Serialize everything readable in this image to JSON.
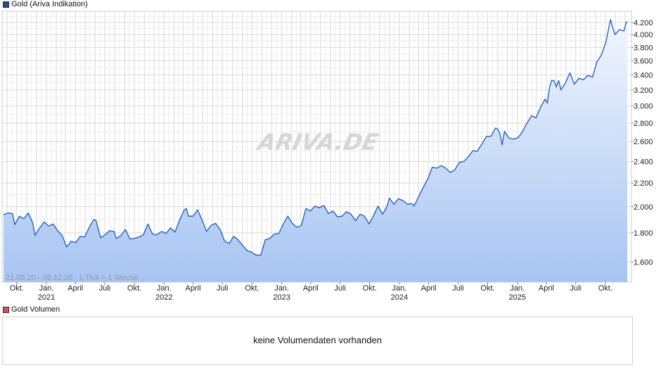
{
  "colors": {
    "line": "#1a5cb8",
    "fill_top": "#f2f6fd",
    "fill_bottom": "#a7c4f2",
    "grid": "#d9d9d9",
    "gold_swatch": "#1f4e9c",
    "volume_swatch": "#d9534f",
    "watermark": "#d6d6d6"
  },
  "legend": {
    "main": "Gold (Ariva Indikation)",
    "volume": "Gold Volumen"
  },
  "watermark": "ARIVA.DE",
  "info": {
    "range": "21.08.20 - 08.12.25",
    "tick": "1 Tick = 1 Woche"
  },
  "volume": {
    "message": "keine Volumendaten vorhanden"
  },
  "chart_data": {
    "type": "area",
    "title": "Gold (Ariva Indikation)",
    "y_scale": "log",
    "ylim": [
      1440,
      4300
    ],
    "y_ticks": [
      1600,
      1800,
      2000,
      2200,
      2400,
      2600,
      2800,
      3000,
      3200,
      3400,
      3600,
      3800,
      4000,
      4200
    ],
    "y_tick_labels": [
      "1.600",
      "1.800",
      "2.000",
      "2.200",
      "2.400",
      "2.600",
      "2.800",
      "3.000",
      "3.200",
      "3.400",
      "3.600",
      "3.800",
      "4.000",
      "4.200"
    ],
    "x_range": [
      "2020-08-21",
      "2025-12-08"
    ],
    "x_ticks": [
      {
        "date": "2020-10-01",
        "label": "Okt."
      },
      {
        "date": "2021-01-01",
        "label": "Jan.",
        "year": "2021"
      },
      {
        "date": "2021-04-01",
        "label": "April"
      },
      {
        "date": "2021-07-01",
        "label": "Juli"
      },
      {
        "date": "2021-10-01",
        "label": "Okt."
      },
      {
        "date": "2022-01-01",
        "label": "Jan.",
        "year": "2022"
      },
      {
        "date": "2022-04-01",
        "label": "April"
      },
      {
        "date": "2022-07-01",
        "label": "Juli"
      },
      {
        "date": "2022-10-01",
        "label": "Okt."
      },
      {
        "date": "2023-01-01",
        "label": "Jan.",
        "year": "2023"
      },
      {
        "date": "2023-04-01",
        "label": "April"
      },
      {
        "date": "2023-07-01",
        "label": "Juli"
      },
      {
        "date": "2023-10-01",
        "label": "Okt."
      },
      {
        "date": "2024-01-01",
        "label": "Jan.",
        "year": "2024"
      },
      {
        "date": "2024-04-01",
        "label": "April"
      },
      {
        "date": "2024-07-01",
        "label": "Juli"
      },
      {
        "date": "2024-10-01",
        "label": "Okt."
      },
      {
        "date": "2025-01-01",
        "label": "Jan.",
        "year": "2025"
      },
      {
        "date": "2025-04-01",
        "label": "April"
      },
      {
        "date": "2025-07-01",
        "label": "Juli"
      },
      {
        "date": "2025-10-01",
        "label": "Okt."
      }
    ],
    "grid": true,
    "legend": "top-left",
    "series": [
      {
        "name": "Gold (Ariva Indikation)",
        "points": [
          [
            "2020-08-21",
            1935
          ],
          [
            "2020-09-04",
            1950
          ],
          [
            "2020-09-18",
            1945
          ],
          [
            "2020-09-25",
            1860
          ],
          [
            "2020-10-09",
            1925
          ],
          [
            "2020-10-23",
            1905
          ],
          [
            "2020-11-06",
            1950
          ],
          [
            "2020-11-20",
            1870
          ],
          [
            "2020-11-27",
            1780
          ],
          [
            "2020-12-11",
            1835
          ],
          [
            "2020-12-25",
            1880
          ],
          [
            "2021-01-08",
            1850
          ],
          [
            "2021-01-22",
            1865
          ],
          [
            "2021-02-05",
            1815
          ],
          [
            "2021-02-19",
            1780
          ],
          [
            "2021-03-05",
            1700
          ],
          [
            "2021-03-19",
            1740
          ],
          [
            "2021-04-02",
            1730
          ],
          [
            "2021-04-16",
            1775
          ],
          [
            "2021-04-30",
            1770
          ],
          [
            "2021-05-14",
            1840
          ],
          [
            "2021-05-28",
            1900
          ],
          [
            "2021-06-04",
            1890
          ],
          [
            "2021-06-18",
            1765
          ],
          [
            "2021-07-02",
            1785
          ],
          [
            "2021-07-16",
            1815
          ],
          [
            "2021-07-30",
            1810
          ],
          [
            "2021-08-06",
            1760
          ],
          [
            "2021-08-20",
            1780
          ],
          [
            "2021-09-03",
            1825
          ],
          [
            "2021-09-17",
            1755
          ],
          [
            "2021-10-01",
            1760
          ],
          [
            "2021-10-15",
            1770
          ],
          [
            "2021-10-29",
            1785
          ],
          [
            "2021-11-12",
            1865
          ],
          [
            "2021-11-26",
            1790
          ],
          [
            "2021-12-10",
            1785
          ],
          [
            "2021-12-24",
            1810
          ],
          [
            "2022-01-07",
            1795
          ],
          [
            "2022-01-21",
            1835
          ],
          [
            "2022-02-04",
            1805
          ],
          [
            "2022-02-18",
            1895
          ],
          [
            "2022-03-04",
            1970
          ],
          [
            "2022-03-11",
            1985
          ],
          [
            "2022-03-18",
            1925
          ],
          [
            "2022-04-01",
            1925
          ],
          [
            "2022-04-15",
            1975
          ],
          [
            "2022-04-29",
            1895
          ],
          [
            "2022-05-13",
            1810
          ],
          [
            "2022-05-27",
            1855
          ],
          [
            "2022-06-10",
            1870
          ],
          [
            "2022-06-24",
            1825
          ],
          [
            "2022-07-08",
            1740
          ],
          [
            "2022-07-22",
            1725
          ],
          [
            "2022-08-05",
            1775
          ],
          [
            "2022-08-19",
            1750
          ],
          [
            "2022-09-02",
            1710
          ],
          [
            "2022-09-16",
            1675
          ],
          [
            "2022-09-30",
            1665
          ],
          [
            "2022-10-14",
            1645
          ],
          [
            "2022-10-28",
            1645
          ],
          [
            "2022-11-11",
            1750
          ],
          [
            "2022-11-25",
            1760
          ],
          [
            "2022-12-09",
            1790
          ],
          [
            "2022-12-23",
            1795
          ],
          [
            "2023-01-06",
            1865
          ],
          [
            "2023-01-20",
            1925
          ],
          [
            "2023-02-03",
            1870
          ],
          [
            "2023-02-17",
            1840
          ],
          [
            "2023-03-03",
            1855
          ],
          [
            "2023-03-17",
            1985
          ],
          [
            "2023-03-31",
            1965
          ],
          [
            "2023-04-14",
            2005
          ],
          [
            "2023-04-28",
            1990
          ],
          [
            "2023-05-12",
            2010
          ],
          [
            "2023-05-26",
            1945
          ],
          [
            "2023-06-09",
            1965
          ],
          [
            "2023-06-23",
            1920
          ],
          [
            "2023-07-07",
            1925
          ],
          [
            "2023-07-21",
            1960
          ],
          [
            "2023-08-04",
            1940
          ],
          [
            "2023-08-18",
            1890
          ],
          [
            "2023-09-01",
            1940
          ],
          [
            "2023-09-15",
            1925
          ],
          [
            "2023-09-29",
            1865
          ],
          [
            "2023-10-13",
            1930
          ],
          [
            "2023-10-27",
            2005
          ],
          [
            "2023-11-10",
            1940
          ],
          [
            "2023-11-24",
            2005
          ],
          [
            "2023-12-01",
            2070
          ],
          [
            "2023-12-15",
            2020
          ],
          [
            "2023-12-29",
            2065
          ],
          [
            "2024-01-12",
            2050
          ],
          [
            "2024-01-26",
            2020
          ],
          [
            "2024-02-09",
            2025
          ],
          [
            "2024-02-16",
            2005
          ],
          [
            "2024-03-01",
            2085
          ],
          [
            "2024-03-15",
            2160
          ],
          [
            "2024-03-29",
            2235
          ],
          [
            "2024-04-12",
            2345
          ],
          [
            "2024-04-26",
            2335
          ],
          [
            "2024-05-10",
            2360
          ],
          [
            "2024-05-24",
            2335
          ],
          [
            "2024-06-07",
            2295
          ],
          [
            "2024-06-21",
            2320
          ],
          [
            "2024-07-05",
            2390
          ],
          [
            "2024-07-19",
            2400
          ],
          [
            "2024-08-02",
            2445
          ],
          [
            "2024-08-16",
            2505
          ],
          [
            "2024-08-30",
            2500
          ],
          [
            "2024-09-13",
            2575
          ],
          [
            "2024-09-27",
            2655
          ],
          [
            "2024-10-11",
            2655
          ],
          [
            "2024-10-25",
            2745
          ],
          [
            "2024-11-01",
            2735
          ],
          [
            "2024-11-08",
            2685
          ],
          [
            "2024-11-15",
            2565
          ],
          [
            "2024-11-22",
            2710
          ],
          [
            "2024-12-06",
            2635
          ],
          [
            "2024-12-20",
            2625
          ],
          [
            "2025-01-03",
            2640
          ],
          [
            "2025-01-17",
            2705
          ],
          [
            "2025-01-31",
            2800
          ],
          [
            "2025-02-14",
            2885
          ],
          [
            "2025-02-28",
            2860
          ],
          [
            "2025-03-14",
            2985
          ],
          [
            "2025-03-28",
            3085
          ],
          [
            "2025-04-04",
            3035
          ],
          [
            "2025-04-11",
            3235
          ],
          [
            "2025-04-18",
            3330
          ],
          [
            "2025-04-25",
            3320
          ],
          [
            "2025-05-02",
            3240
          ],
          [
            "2025-05-09",
            3325
          ],
          [
            "2025-05-16",
            3200
          ],
          [
            "2025-05-30",
            3290
          ],
          [
            "2025-06-13",
            3430
          ],
          [
            "2025-06-27",
            3275
          ],
          [
            "2025-07-11",
            3355
          ],
          [
            "2025-07-25",
            3335
          ],
          [
            "2025-08-08",
            3395
          ],
          [
            "2025-08-22",
            3370
          ],
          [
            "2025-09-05",
            3585
          ],
          [
            "2025-09-19",
            3685
          ],
          [
            "2025-10-03",
            3885
          ],
          [
            "2025-10-17",
            4250
          ],
          [
            "2025-10-24",
            4110
          ],
          [
            "2025-10-31",
            4000
          ],
          [
            "2025-11-14",
            4080
          ],
          [
            "2025-11-28",
            4060
          ],
          [
            "2025-12-05",
            4210
          ],
          [
            "2025-12-08",
            4200
          ]
        ]
      }
    ]
  }
}
